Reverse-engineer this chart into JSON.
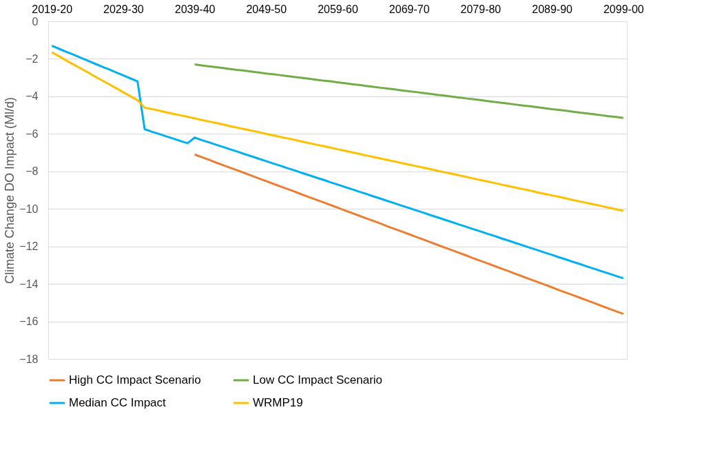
{
  "chart_data": {
    "type": "line",
    "categories": [
      "2019-20",
      null,
      null,
      null,
      null,
      null,
      null,
      null,
      null,
      null,
      "2029-30",
      null,
      null,
      null,
      null,
      null,
      null,
      null,
      null,
      null,
      "2039-40",
      null,
      null,
      null,
      null,
      null,
      null,
      null,
      null,
      null,
      "2049-50",
      null,
      null,
      null,
      null,
      null,
      null,
      null,
      null,
      null,
      "2059-60",
      null,
      null,
      null,
      null,
      null,
      null,
      null,
      null,
      null,
      "2069-70",
      null,
      null,
      null,
      null,
      null,
      null,
      null,
      null,
      null,
      "2079-80",
      null,
      null,
      null,
      null,
      null,
      null,
      null,
      null,
      null,
      "2089-90",
      null,
      null,
      null,
      null,
      null,
      null,
      null,
      null,
      null,
      "2099-00"
    ],
    "ylabel": "Climate Change DO Impact (Ml/d)",
    "ylim": [
      -18,
      0
    ],
    "yticks": [
      -18,
      -16,
      -14,
      -12,
      -10,
      -8,
      -6,
      -4,
      -2,
      0
    ],
    "grid": "y",
    "legend": "bottom",
    "marker": "none",
    "line_style": "solid",
    "series": [
      {
        "name": "High CC Impact Scenario",
        "color": "#ed7d31",
        "values": [
          null,
          null,
          null,
          null,
          null,
          null,
          null,
          null,
          null,
          null,
          null,
          null,
          null,
          null,
          null,
          null,
          null,
          null,
          null,
          null,
          -7.1,
          -7.24,
          -7.38,
          -7.53,
          -7.67,
          -7.81,
          -7.95,
          -8.09,
          -8.23,
          -8.38,
          -8.52,
          -8.66,
          -8.8,
          -8.94,
          -9.08,
          -9.23,
          -9.37,
          -9.51,
          -9.65,
          -9.79,
          -9.93,
          -10.08,
          -10.22,
          -10.36,
          -10.5,
          -10.64,
          -10.78,
          -10.93,
          -11.07,
          -11.21,
          -11.35,
          -11.49,
          -11.63,
          -11.78,
          -11.92,
          -12.06,
          -12.2,
          -12.34,
          -12.48,
          -12.63,
          -12.77,
          -12.91,
          -13.05,
          -13.19,
          -13.33,
          -13.48,
          -13.62,
          -13.76,
          -13.9,
          -14.04,
          -14.18,
          -14.33,
          -14.47,
          -14.61,
          -14.75,
          -14.89,
          -15.03,
          -15.18,
          -15.32,
          -15.46,
          -15.6
        ]
      },
      {
        "name": "Low CC Impact Scenario",
        "color": "#70ad47",
        "values": [
          null,
          null,
          null,
          null,
          null,
          null,
          null,
          null,
          null,
          null,
          null,
          null,
          null,
          null,
          null,
          null,
          null,
          null,
          null,
          null,
          -2.3,
          -2.35,
          -2.4,
          -2.44,
          -2.49,
          -2.54,
          -2.59,
          -2.63,
          -2.68,
          -2.73,
          -2.78,
          -2.82,
          -2.87,
          -2.92,
          -2.97,
          -3.01,
          -3.06,
          -3.11,
          -3.16,
          -3.2,
          -3.25,
          -3.3,
          -3.35,
          -3.39,
          -3.44,
          -3.49,
          -3.54,
          -3.58,
          -3.63,
          -3.68,
          -3.73,
          -3.77,
          -3.82,
          -3.87,
          -3.92,
          -3.96,
          -4.01,
          -4.06,
          -4.11,
          -4.15,
          -4.2,
          -4.25,
          -4.3,
          -4.34,
          -4.39,
          -4.44,
          -4.49,
          -4.53,
          -4.58,
          -4.63,
          -4.68,
          -4.72,
          -4.77,
          -4.82,
          -4.87,
          -4.91,
          -4.96,
          -5.01,
          -5.06,
          -5.1,
          -5.15
        ]
      },
      {
        "name": "Median CC Impact",
        "color": "#00b0f0",
        "values": [
          -1.3,
          -1.46,
          -1.62,
          -1.77,
          -1.93,
          -2.09,
          -2.25,
          -2.41,
          -2.56,
          -2.72,
          -2.88,
          -3.04,
          -3.2,
          -5.75,
          -5.88,
          -6.0,
          -6.13,
          -6.25,
          -6.38,
          -6.5,
          -6.2,
          -6.33,
          -6.45,
          -6.58,
          -6.7,
          -6.83,
          -6.95,
          -7.08,
          -7.2,
          -7.33,
          -7.45,
          -7.58,
          -7.7,
          -7.83,
          -7.95,
          -8.08,
          -8.2,
          -8.33,
          -8.45,
          -8.58,
          -8.7,
          -8.83,
          -8.95,
          -9.08,
          -9.2,
          -9.33,
          -9.45,
          -9.58,
          -9.7,
          -9.83,
          -9.95,
          -10.08,
          -10.2,
          -10.33,
          -10.45,
          -10.58,
          -10.7,
          -10.83,
          -10.95,
          -11.08,
          -11.2,
          -11.33,
          -11.45,
          -11.58,
          -11.7,
          -11.83,
          -11.95,
          -12.08,
          -12.2,
          -12.33,
          -12.45,
          -12.58,
          -12.7,
          -12.83,
          -12.95,
          -13.08,
          -13.2,
          -13.33,
          -13.45,
          -13.58,
          -13.7
        ]
      },
      {
        "name": "WRMP19",
        "color": "#ffc000",
        "values": [
          -1.65,
          -1.86,
          -2.08,
          -2.29,
          -2.5,
          -2.71,
          -2.93,
          -3.14,
          -3.35,
          -3.56,
          -3.78,
          -3.99,
          -4.2,
          -4.6,
          -4.68,
          -4.76,
          -4.85,
          -4.93,
          -5.01,
          -5.09,
          -5.17,
          -5.26,
          -5.34,
          -5.42,
          -5.5,
          -5.59,
          -5.67,
          -5.75,
          -5.83,
          -5.91,
          -6.0,
          -6.08,
          -6.16,
          -6.24,
          -6.32,
          -6.41,
          -6.49,
          -6.57,
          -6.65,
          -6.73,
          -6.82,
          -6.9,
          -6.98,
          -7.06,
          -7.15,
          -7.23,
          -7.31,
          -7.39,
          -7.47,
          -7.56,
          -7.64,
          -7.72,
          -7.8,
          -7.88,
          -7.97,
          -8.05,
          -8.13,
          -8.21,
          -8.29,
          -8.38,
          -8.46,
          -8.54,
          -8.62,
          -8.71,
          -8.79,
          -8.87,
          -8.95,
          -9.03,
          -9.12,
          -9.2,
          -9.28,
          -9.36,
          -9.44,
          -9.53,
          -9.61,
          -9.69,
          -9.77,
          -9.85,
          -9.94,
          -10.02,
          -10.1
        ]
      }
    ]
  }
}
